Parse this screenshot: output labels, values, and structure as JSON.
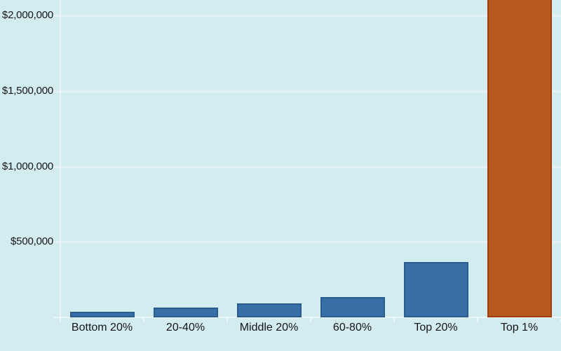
{
  "chart": {
    "background_color": "#d3ecf0",
    "grid_color": "#e4f2f5",
    "axis_color": "#ecf6f8",
    "text_color": "#161616",
    "bar_fill": "#376fa6",
    "bar_stroke": "#2a5d8d",
    "highlight_fill": "#b7591c",
    "highlight_stroke": "#a03e10"
  },
  "chart_data": {
    "type": "bar",
    "title": "",
    "xlabel": "",
    "ylabel": "",
    "categories": [
      "Bottom 20%",
      "20-40%",
      "Middle 20%",
      "60-80%",
      "Top 20%",
      "Top 1%"
    ],
    "values": [
      35000,
      67000,
      94000,
      136000,
      367000,
      2200000
    ],
    "highlight_category": "Top 1%",
    "highlight_bar_clipped_at_chart_top": true,
    "ylim": [
      0,
      2104000
    ],
    "yticks": [
      {
        "value": 500000,
        "label": "$500,000"
      },
      {
        "value": 1000000,
        "label": "$1,000,000"
      },
      {
        "value": 1500000,
        "label": "$1,500,000"
      },
      {
        "value": 2000000,
        "label": "$2,000,000"
      }
    ],
    "grid": true,
    "legend": false
  }
}
